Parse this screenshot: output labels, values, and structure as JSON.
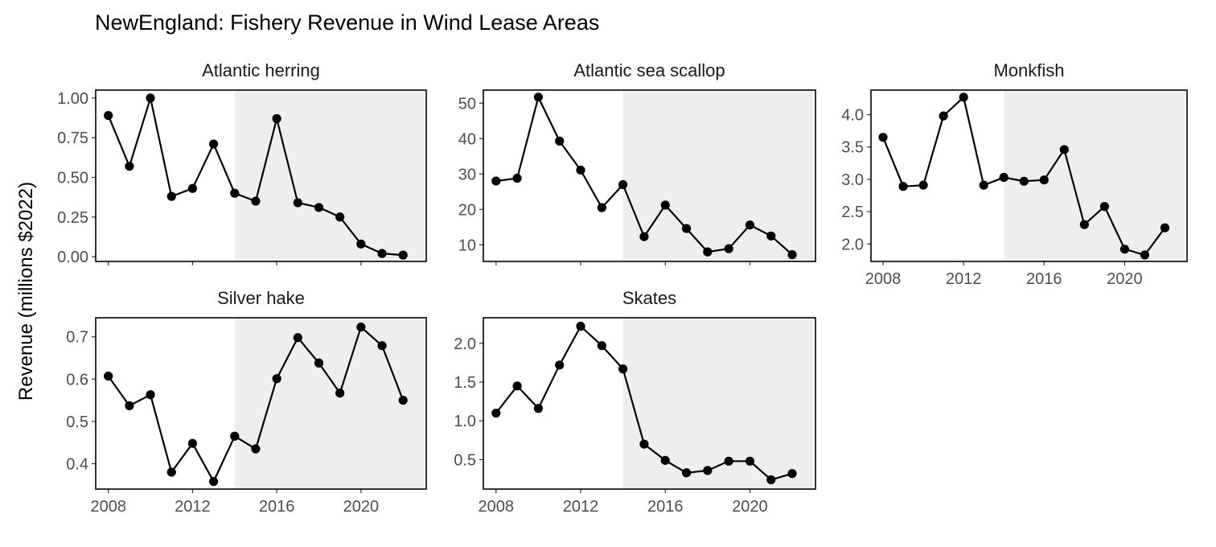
{
  "chart_data": {
    "type": "line",
    "title": "NewEngland: Fishery Revenue in Wind Lease Areas",
    "ylabel": "Revenue (millions $2022)",
    "xlabel": "",
    "x": [
      2008,
      2009,
      2010,
      2011,
      2012,
      2013,
      2014,
      2015,
      2016,
      2017,
      2018,
      2019,
      2020,
      2021,
      2022
    ],
    "x_ticks": [
      "2008",
      "2012",
      "2016",
      "2020"
    ],
    "xlim": [
      2007.4,
      2023.1
    ],
    "shaded_period": [
      2014,
      2023
    ],
    "panels": [
      {
        "name": "Atlantic herring",
        "values": [
          0.89,
          0.57,
          1.0,
          0.38,
          0.43,
          0.71,
          0.4,
          0.35,
          0.87,
          0.34,
          0.31,
          0.25,
          0.08,
          0.02,
          0.01
        ],
        "ylim": [
          -0.03,
          1.05
        ],
        "y_ticks": [
          "0.00",
          "0.25",
          "0.50",
          "0.75",
          "1.00"
        ]
      },
      {
        "name": "Atlantic sea scallop",
        "values": [
          28.0,
          28.8,
          51.7,
          39.3,
          31.1,
          20.5,
          27.0,
          12.3,
          21.2,
          14.6,
          8.0,
          8.9,
          15.6,
          12.5,
          7.2
        ],
        "ylim": [
          5.3,
          53.7
        ],
        "y_ticks": [
          "10",
          "20",
          "30",
          "40",
          "50"
        ]
      },
      {
        "name": "Monkfish",
        "values": [
          3.65,
          2.89,
          2.91,
          3.98,
          4.27,
          2.91,
          3.03,
          2.97,
          2.99,
          3.46,
          2.3,
          2.58,
          1.92,
          1.83,
          2.25
        ],
        "ylim": [
          1.73,
          4.38
        ],
        "y_ticks": [
          "2.0",
          "2.5",
          "3.0",
          "3.5",
          "4.0"
        ]
      },
      {
        "name": "Silver hake",
        "values": [
          0.607,
          0.537,
          0.563,
          0.38,
          0.448,
          0.358,
          0.465,
          0.435,
          0.601,
          0.698,
          0.638,
          0.567,
          0.723,
          0.679,
          0.55
        ],
        "ylim": [
          0.34,
          0.745
        ],
        "y_ticks": [
          "0.4",
          "0.5",
          "0.6",
          "0.7"
        ]
      },
      {
        "name": "Skates",
        "values": [
          1.1,
          1.45,
          1.16,
          1.72,
          2.22,
          1.97,
          1.67,
          0.7,
          0.49,
          0.33,
          0.36,
          0.48,
          0.48,
          0.24,
          0.32
        ],
        "ylim": [
          0.12,
          2.33
        ],
        "y_ticks": [
          "0.5",
          "1.0",
          "1.5",
          "2.0"
        ]
      }
    ],
    "colors": {
      "line": "#000000",
      "shade": "#eeeeee",
      "panel_border": "#000000"
    }
  }
}
